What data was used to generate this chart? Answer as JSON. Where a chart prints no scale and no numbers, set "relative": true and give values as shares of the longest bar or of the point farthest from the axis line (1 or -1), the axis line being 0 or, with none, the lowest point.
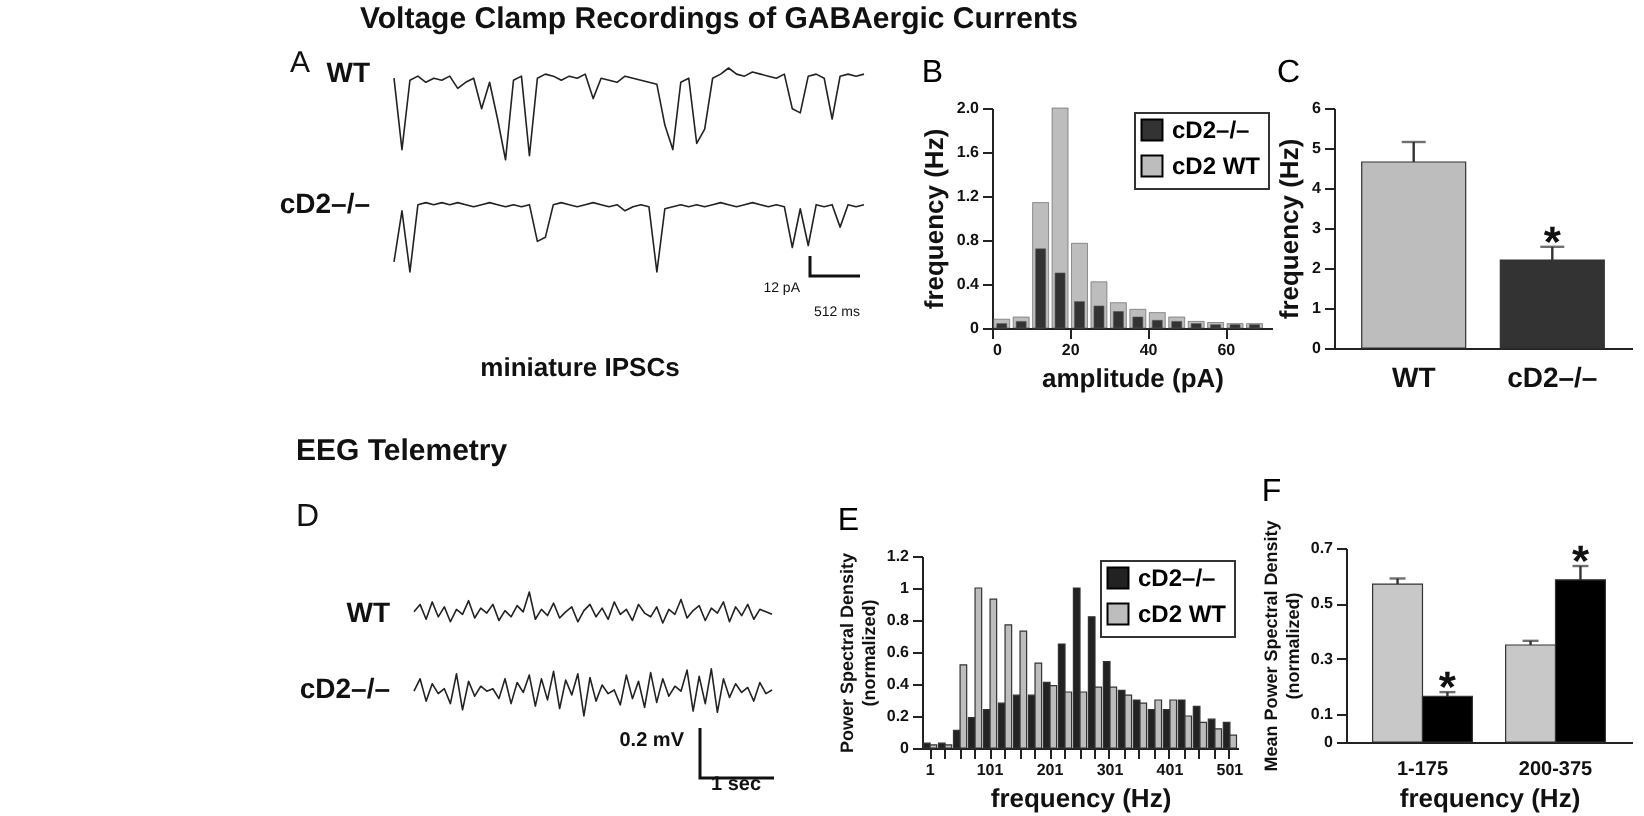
{
  "chart_data": [
    {
      "type": "line",
      "relative": true,
      "title": "Voltage Clamp Recordings of GABAergic Currents",
      "annotations": [
        "A",
        "12 pA",
        "512 ms",
        "miniature IPSCs"
      ],
      "categories": [
        null,
        null,
        null,
        null,
        null,
        null,
        null,
        null,
        null,
        null,
        null,
        null,
        null,
        null,
        null,
        null,
        null,
        null,
        null,
        null,
        null,
        null,
        null,
        null,
        null,
        null,
        null,
        null,
        null,
        null,
        null,
        null,
        null,
        null,
        null,
        null,
        null,
        null,
        null,
        null,
        null,
        null,
        null,
        null,
        null,
        null,
        null,
        null,
        null,
        null,
        null,
        null,
        null,
        null,
        null,
        null,
        null,
        null,
        null,
        null
      ],
      "series": [
        {
          "name": "WT",
          "color": "#222222",
          "values": [
            0.95,
            0.6,
            0.94,
            0.96,
            0.93,
            0.95,
            0.94,
            0.96,
            0.9,
            0.93,
            0.95,
            0.8,
            0.93,
            0.75,
            0.55,
            0.94,
            0.96,
            0.57,
            0.95,
            0.97,
            0.96,
            0.94,
            0.96,
            0.95,
            0.97,
            0.85,
            0.95,
            0.94,
            0.93,
            0.96,
            0.95,
            0.94,
            0.93,
            0.92,
            0.72,
            0.6,
            0.93,
            0.95,
            0.63,
            0.7,
            0.95,
            0.97,
            1.0,
            0.97,
            0.96,
            0.98,
            0.97,
            0.96,
            0.95,
            0.97,
            0.8,
            0.78,
            0.96,
            0.97,
            0.95,
            0.75,
            0.96,
            0.97,
            0.96,
            0.97
          ]
        },
        {
          "name": "cD2–/–",
          "color": "#222222",
          "values": [
            0.05,
            0.3,
            0.0,
            0.33,
            0.34,
            0.33,
            0.34,
            0.33,
            0.34,
            0.33,
            0.32,
            0.33,
            0.34,
            0.33,
            0.32,
            0.33,
            0.32,
            0.33,
            0.15,
            0.17,
            0.33,
            0.34,
            0.33,
            0.32,
            0.33,
            0.34,
            0.33,
            0.32,
            0.33,
            0.3,
            0.32,
            0.33,
            0.32,
            0.0,
            0.31,
            0.32,
            0.33,
            0.32,
            0.33,
            0.32,
            0.33,
            0.34,
            0.33,
            0.32,
            0.33,
            0.34,
            0.33,
            0.32,
            0.33,
            0.32,
            0.12,
            0.31,
            0.13,
            0.33,
            0.32,
            0.33,
            0.22,
            0.33,
            0.32,
            0.33
          ]
        }
      ]
    },
    {
      "type": "bar",
      "title": "B",
      "xlabel": "amplitude (pA)",
      "ylabel": "frequency (Hz)",
      "x": [
        2.5,
        7.5,
        12.5,
        17.5,
        22.5,
        27.5,
        32.5,
        37.5,
        42.5,
        47.5,
        52.5,
        57.5,
        62.5,
        67.5
      ],
      "series": [
        {
          "name": "cD2–/–",
          "color": "#333333",
          "values": [
            0.04,
            0.06,
            0.72,
            0.5,
            0.24,
            0.2,
            0.15,
            0.1,
            0.07,
            0.06,
            0.04,
            0.03,
            0.03,
            0.03
          ]
        },
        {
          "name": "cD2 WT",
          "color": "#bdbdbd",
          "values": [
            0.08,
            0.1,
            1.14,
            2.0,
            0.77,
            0.42,
            0.23,
            0.17,
            0.14,
            0.1,
            0.06,
            0.05,
            0.04,
            0.04
          ]
        }
      ],
      "xlim": [
        0,
        72
      ],
      "xticks": [
        0,
        20,
        40,
        60
      ],
      "ylim": [
        0,
        2.0
      ],
      "yticks": [
        0,
        0.4,
        0.8,
        1.2,
        1.6,
        {
          "value": 2.0,
          "label": "2.0"
        }
      ],
      "legend": "top right"
    },
    {
      "type": "bar",
      "title": "C",
      "ylabel": "frequency (Hz)",
      "categories": [
        "WT",
        "cD2–/–"
      ],
      "values": [
        4.65,
        2.2
      ],
      "colors": [
        "#bdbdbd",
        "#333333"
      ],
      "errors": [
        0.5,
        0.33
      ],
      "value_labels": [
        null,
        "*"
      ],
      "ylim": [
        0,
        6
      ],
      "yticks": [
        0,
        1,
        2,
        3,
        4,
        5,
        6
      ]
    },
    {
      "type": "line",
      "relative": true,
      "title": "EEG Telemetry",
      "annotations": [
        "D",
        "0.2 mV",
        "1 sec"
      ],
      "categories": [
        null,
        null,
        null,
        null,
        null,
        null,
        null,
        null,
        null,
        null,
        null,
        null,
        null,
        null,
        null,
        null,
        null,
        null,
        null,
        null,
        null,
        null,
        null,
        null,
        null,
        null,
        null,
        null,
        null,
        null,
        null,
        null,
        null,
        null,
        null,
        null,
        null,
        null,
        null,
        null,
        null,
        null,
        null,
        null,
        null,
        null,
        null,
        null,
        null,
        null,
        null,
        null,
        null,
        null,
        null,
        null,
        null,
        null,
        null,
        null
      ],
      "series": [
        {
          "name": "WT",
          "color": "#222222",
          "values": [
            0.84,
            0.9,
            0.78,
            0.92,
            0.8,
            0.88,
            0.76,
            0.86,
            0.82,
            0.93,
            0.79,
            0.87,
            0.83,
            0.9,
            0.77,
            0.85,
            0.8,
            0.89,
            0.84,
            1.0,
            0.78,
            0.86,
            0.81,
            0.91,
            0.79,
            0.84,
            0.88,
            0.76,
            0.85,
            0.9,
            0.8,
            0.87,
            0.78,
            0.92,
            0.82,
            0.86,
            0.77,
            0.9,
            0.83,
            0.8,
            0.88,
            0.75,
            0.86,
            0.82,
            0.94,
            0.79,
            0.85,
            0.89,
            0.77,
            0.87,
            0.83,
            0.92,
            0.76,
            0.88,
            0.81,
            0.9,
            0.78,
            0.86,
            0.84,
            0.82
          ]
        },
        {
          "name": "cD2–/–",
          "color": "#222222",
          "values": [
            0.2,
            0.3,
            0.12,
            0.26,
            0.18,
            0.22,
            0.1,
            0.34,
            0.05,
            0.28,
            0.16,
            0.24,
            0.2,
            0.22,
            0.14,
            0.3,
            0.1,
            0.27,
            0.19,
            0.33,
            0.08,
            0.3,
            0.13,
            0.36,
            0.06,
            0.29,
            0.17,
            0.34,
            0.0,
            0.31,
            0.12,
            0.25,
            0.18,
            0.21,
            0.09,
            0.33,
            0.14,
            0.28,
            0.07,
            0.35,
            0.11,
            0.3,
            0.16,
            0.24,
            0.2,
            0.37,
            0.04,
            0.32,
            0.1,
            0.38,
            0.03,
            0.3,
            0.15,
            0.26,
            0.19,
            0.23,
            0.12,
            0.27,
            0.18,
            0.21
          ]
        }
      ]
    },
    {
      "type": "bar",
      "title": "E",
      "xlabel": "frequency (Hz)",
      "ylabel": "Power Spectral Density\n(normalized)",
      "categories": [
        "1",
        null,
        null,
        null,
        "101",
        null,
        null,
        null,
        "201",
        null,
        null,
        null,
        "301",
        null,
        null,
        null,
        "401",
        null,
        null,
        null,
        "501"
      ],
      "series": [
        {
          "name": "cD2–/–",
          "color": "#222222",
          "values": [
            0.03,
            0.03,
            0.11,
            0.19,
            0.24,
            0.28,
            0.33,
            0.33,
            0.41,
            0.65,
            1.0,
            0.82,
            0.54,
            0.36,
            0.3,
            0.24,
            0.24,
            0.3,
            0.26,
            0.18,
            0.16
          ]
        },
        {
          "name": "cD2 WT",
          "color": "#bdbdbd",
          "values": [
            0.02,
            0.02,
            0.52,
            1.0,
            0.93,
            0.77,
            0.73,
            0.53,
            0.39,
            0.35,
            0.35,
            0.38,
            0.38,
            0.33,
            0.28,
            0.3,
            0.3,
            0.2,
            0.16,
            0.12,
            0.08
          ]
        }
      ],
      "ylim": [
        0,
        1.2
      ],
      "yticks": [
        0,
        0.2,
        0.4,
        0.6,
        0.8,
        1,
        1.2
      ],
      "legend": "top right"
    },
    {
      "type": "bar",
      "title": "F",
      "xlabel": "frequency (Hz)",
      "ylabel": "Mean Power Spectral Density\n(normalized)",
      "categories": [
        "1-175",
        "200-375"
      ],
      "series": [
        {
          "color": "#c8c8c8",
          "values": [
            0.57,
            0.35
          ],
          "errors": [
            0.02,
            0.015
          ]
        },
        {
          "color": "#000000",
          "values": [
            0.165,
            0.585
          ],
          "errors": [
            0.015,
            0.05
          ],
          "value_labels": [
            "*",
            "*"
          ]
        }
      ],
      "ylim": [
        0,
        0.7
      ],
      "yticks": [
        0,
        0.1,
        0.3,
        0.5,
        0.7
      ]
    }
  ]
}
